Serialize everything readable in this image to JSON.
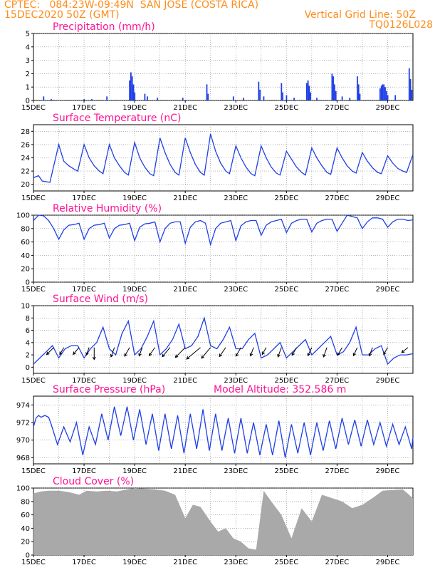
{
  "header": {
    "line1_left": "CPTEC:   084:23W-09:49N  SAN JOSE (COSTA RICA)",
    "line2_left": "15DEC2020 50Z (GMT)",
    "line2_right": "Vertical Grid Line: 50Z",
    "line3_right": "TQ0126L028"
  },
  "colors": {
    "header": "#ff8c1a",
    "title": "#ff1493",
    "series": "#1f3fe6",
    "cloud": "#a9a9a9"
  },
  "x_ticks": [
    "15DEC",
    "17DEC",
    "19DEC",
    "21DEC",
    "23DEC",
    "25DEC",
    "27DEC",
    "29DEC"
  ],
  "chart_data": [
    {
      "type": "bar",
      "title": "Precipitation (mm/h)",
      "ylim": [
        0,
        5
      ],
      "yticks": [
        "0",
        "1",
        "2",
        "3",
        "4",
        "5"
      ],
      "x_range_days": [
        15,
        30
      ],
      "events": [
        {
          "x": 15.4,
          "v": 0.3
        },
        {
          "x": 15.7,
          "v": 0.1
        },
        {
          "x": 17.0,
          "v": 0.1
        },
        {
          "x": 17.3,
          "v": 0.1
        },
        {
          "x": 17.9,
          "v": 0.3
        },
        {
          "x": 18.8,
          "v": 1.5
        },
        {
          "x": 18.85,
          "v": 2.1
        },
        {
          "x": 18.9,
          "v": 1.8
        },
        {
          "x": 18.95,
          "v": 1.2
        },
        {
          "x": 19.0,
          "v": 0.6
        },
        {
          "x": 19.4,
          "v": 0.5
        },
        {
          "x": 19.5,
          "v": 0.3
        },
        {
          "x": 19.9,
          "v": 0.2
        },
        {
          "x": 20.9,
          "v": 0.2
        },
        {
          "x": 21.85,
          "v": 1.2
        },
        {
          "x": 21.9,
          "v": 0.5
        },
        {
          "x": 22.9,
          "v": 0.3
        },
        {
          "x": 23.3,
          "v": 0.2
        },
        {
          "x": 23.9,
          "v": 1.4
        },
        {
          "x": 23.95,
          "v": 0.8
        },
        {
          "x": 24.1,
          "v": 0.3
        },
        {
          "x": 24.8,
          "v": 1.3
        },
        {
          "x": 24.85,
          "v": 0.6
        },
        {
          "x": 25.0,
          "v": 0.4
        },
        {
          "x": 25.3,
          "v": 0.2
        },
        {
          "x": 25.8,
          "v": 1.3
        },
        {
          "x": 25.85,
          "v": 1.5
        },
        {
          "x": 25.9,
          "v": 1.1
        },
        {
          "x": 25.95,
          "v": 0.6
        },
        {
          "x": 26.2,
          "v": 0.2
        },
        {
          "x": 26.8,
          "v": 2.0
        },
        {
          "x": 26.85,
          "v": 1.8
        },
        {
          "x": 26.9,
          "v": 1.2
        },
        {
          "x": 26.95,
          "v": 0.7
        },
        {
          "x": 27.2,
          "v": 0.3
        },
        {
          "x": 27.5,
          "v": 0.2
        },
        {
          "x": 27.8,
          "v": 1.8
        },
        {
          "x": 27.85,
          "v": 1.2
        },
        {
          "x": 27.9,
          "v": 0.5
        },
        {
          "x": 28.7,
          "v": 0.9
        },
        {
          "x": 28.75,
          "v": 1.1
        },
        {
          "x": 28.8,
          "v": 1.2
        },
        {
          "x": 28.85,
          "v": 1.2
        },
        {
          "x": 28.9,
          "v": 1.0
        },
        {
          "x": 28.95,
          "v": 0.7
        },
        {
          "x": 29.0,
          "v": 0.4
        },
        {
          "x": 29.3,
          "v": 0.4
        },
        {
          "x": 29.85,
          "v": 2.4
        },
        {
          "x": 29.9,
          "v": 1.6
        },
        {
          "x": 29.95,
          "v": 0.8
        }
      ]
    },
    {
      "type": "line",
      "title": "Surface Temperature (nC)",
      "ylim": [
        19,
        29
      ],
      "yticks": [
        "20",
        "22",
        "24",
        "26",
        "28"
      ],
      "x": [
        15.0,
        15.2,
        15.35,
        15.65,
        16.0,
        16.2,
        16.4,
        16.6,
        16.75,
        17.0,
        17.2,
        17.4,
        17.6,
        17.75,
        18.0,
        18.2,
        18.4,
        18.6,
        18.75,
        19.0,
        19.2,
        19.4,
        19.6,
        19.75,
        20.0,
        20.2,
        20.4,
        20.6,
        20.75,
        21.0,
        21.2,
        21.4,
        21.6,
        21.75,
        22.0,
        22.2,
        22.4,
        22.6,
        22.75,
        23.0,
        23.2,
        23.4,
        23.6,
        23.75,
        24.0,
        24.2,
        24.4,
        24.6,
        24.75,
        25.0,
        25.2,
        25.4,
        25.6,
        25.75,
        26.0,
        26.2,
        26.4,
        26.6,
        26.75,
        27.0,
        27.2,
        27.4,
        27.6,
        27.75,
        28.0,
        28.2,
        28.4,
        28.6,
        28.75,
        29.0,
        29.2,
        29.4,
        29.6,
        29.75,
        30.0
      ],
      "y": [
        21.0,
        21.3,
        20.5,
        20.3,
        26.0,
        23.5,
        22.8,
        22.3,
        22.0,
        26.0,
        24.0,
        22.8,
        22.0,
        21.6,
        26.0,
        24.0,
        22.8,
        21.8,
        21.4,
        26.3,
        24.0,
        22.6,
        21.6,
        21.3,
        27.0,
        24.8,
        23.0,
        21.8,
        21.4,
        27.0,
        24.8,
        23.0,
        21.8,
        21.4,
        27.6,
        25.0,
        23.2,
        22.0,
        21.6,
        25.8,
        24.0,
        22.6,
        21.6,
        21.3,
        25.8,
        24.0,
        22.6,
        21.7,
        21.4,
        25.0,
        23.8,
        22.6,
        21.8,
        21.4,
        25.5,
        24.0,
        22.8,
        21.8,
        21.5,
        25.5,
        24.0,
        22.8,
        22.0,
        21.7,
        24.8,
        23.5,
        22.5,
        21.8,
        21.6,
        24.3,
        23.2,
        22.4,
        22.0,
        21.8,
        24.5
      ]
    },
    {
      "type": "line",
      "title": "Relative Humidity (%)",
      "ylim": [
        0,
        100
      ],
      "yticks": [
        "0",
        "20",
        "40",
        "60",
        "80",
        "100"
      ],
      "x": [
        15.0,
        15.2,
        15.4,
        15.6,
        15.8,
        16.0,
        16.2,
        16.4,
        16.6,
        16.8,
        17.0,
        17.2,
        17.4,
        17.6,
        17.8,
        18.0,
        18.2,
        18.4,
        18.6,
        18.8,
        19.0,
        19.2,
        19.4,
        19.6,
        19.8,
        20.0,
        20.2,
        20.4,
        20.6,
        20.8,
        21.0,
        21.2,
        21.4,
        21.6,
        21.8,
        22.0,
        22.2,
        22.4,
        22.6,
        22.8,
        23.0,
        23.2,
        23.4,
        23.6,
        23.8,
        24.0,
        24.2,
        24.4,
        24.6,
        24.8,
        25.0,
        25.2,
        25.4,
        25.6,
        25.8,
        26.0,
        26.2,
        26.4,
        26.6,
        26.8,
        27.0,
        27.2,
        27.4,
        27.6,
        27.8,
        28.0,
        28.2,
        28.4,
        28.6,
        28.8,
        29.0,
        29.2,
        29.4,
        29.6,
        29.8,
        30.0
      ],
      "y": [
        92,
        100,
        99,
        92,
        80,
        64,
        78,
        85,
        86,
        88,
        64,
        80,
        85,
        86,
        88,
        66,
        80,
        85,
        86,
        88,
        62,
        82,
        87,
        88,
        90,
        60,
        80,
        88,
        90,
        90,
        58,
        82,
        90,
        92,
        88,
        56,
        80,
        88,
        90,
        92,
        62,
        84,
        90,
        92,
        92,
        70,
        85,
        90,
        92,
        94,
        74,
        88,
        92,
        94,
        94,
        75,
        88,
        92,
        94,
        94,
        76,
        88,
        100,
        98,
        96,
        80,
        90,
        96,
        96,
        94,
        82,
        90,
        94,
        94,
        92,
        93
      ]
    },
    {
      "type": "line",
      "title": "Surface Wind (m/s)",
      "ylim": [
        -1,
        10
      ],
      "yticks": [
        "0",
        "2",
        "4",
        "6",
        "8",
        "10"
      ],
      "x": [
        15.0,
        15.25,
        15.5,
        15.75,
        16.0,
        16.25,
        16.5,
        16.75,
        17.0,
        17.25,
        17.5,
        17.75,
        18.0,
        18.25,
        18.5,
        18.75,
        19.0,
        19.25,
        19.5,
        19.75,
        20.0,
        20.25,
        20.5,
        20.75,
        21.0,
        21.25,
        21.5,
        21.75,
        22.0,
        22.25,
        22.5,
        22.75,
        23.0,
        23.25,
        23.5,
        23.75,
        24.0,
        24.25,
        24.5,
        24.75,
        25.0,
        25.25,
        25.5,
        25.75,
        26.0,
        26.25,
        26.5,
        26.75,
        27.0,
        27.25,
        27.5,
        27.75,
        28.0,
        28.25,
        28.5,
        28.75,
        29.0,
        29.25,
        29.5,
        29.75,
        30.0
      ],
      "y": [
        0.5,
        1.5,
        2.5,
        3.5,
        1.5,
        3.0,
        3.5,
        3.5,
        1.5,
        3.0,
        4.0,
        6.5,
        3.0,
        2.0,
        5.5,
        7.5,
        2.0,
        3.0,
        5.0,
        7.5,
        2.0,
        3.0,
        4.5,
        7.0,
        3.0,
        3.5,
        5.0,
        8.0,
        3.5,
        3.0,
        4.5,
        6.5,
        3.0,
        3.0,
        4.5,
        5.5,
        1.5,
        2.0,
        3.0,
        4.0,
        1.5,
        2.5,
        3.5,
        4.5,
        2.0,
        3.0,
        4.0,
        5.0,
        2.0,
        2.5,
        4.0,
        6.5,
        2.0,
        2.0,
        3.0,
        3.5,
        0.5,
        1.5,
        2.0,
        2.0,
        2.2
      ],
      "arrows": [
        {
          "x": 15.8,
          "dir": 225,
          "len": 1.0
        },
        {
          "x": 16.2,
          "dir": 210,
          "len": 0.8
        },
        {
          "x": 16.8,
          "dir": 220,
          "len": 0.9
        },
        {
          "x": 17.2,
          "dir": 200,
          "len": 0.8
        },
        {
          "x": 17.4,
          "dir": 180,
          "len": 1.2
        },
        {
          "x": 18.2,
          "dir": 200,
          "len": 1.0
        },
        {
          "x": 18.8,
          "dir": 210,
          "len": 1.0
        },
        {
          "x": 19.3,
          "dir": 200,
          "len": 0.9
        },
        {
          "x": 19.8,
          "dir": 215,
          "len": 1.0
        },
        {
          "x": 20.4,
          "dir": 220,
          "len": 1.2
        },
        {
          "x": 21.0,
          "dir": 225,
          "len": 1.4
        },
        {
          "x": 21.6,
          "dir": 230,
          "len": 1.8
        },
        {
          "x": 22.0,
          "dir": 220,
          "len": 1.4
        },
        {
          "x": 22.6,
          "dir": 215,
          "len": 1.1
        },
        {
          "x": 23.2,
          "dir": 210,
          "len": 1.0
        },
        {
          "x": 23.7,
          "dir": 200,
          "len": 0.9
        },
        {
          "x": 24.2,
          "dir": 210,
          "len": 0.8
        },
        {
          "x": 24.8,
          "dir": 200,
          "len": 1.0
        },
        {
          "x": 25.4,
          "dir": 210,
          "len": 0.9
        },
        {
          "x": 26.0,
          "dir": 205,
          "len": 0.9
        },
        {
          "x": 26.6,
          "dir": 200,
          "len": 1.0
        },
        {
          "x": 27.2,
          "dir": 210,
          "len": 0.9
        },
        {
          "x": 27.8,
          "dir": 205,
          "len": 0.9
        },
        {
          "x": 28.4,
          "dir": 200,
          "len": 0.9
        },
        {
          "x": 29.0,
          "dir": 210,
          "len": 0.8
        },
        {
          "x": 29.8,
          "dir": 230,
          "len": 0.8
        }
      ]
    },
    {
      "type": "line",
      "title": "Surface Pressure (hPa)",
      "annotation": "Model Altitude: 352.586 m",
      "ylim": [
        967.3,
        975
      ],
      "yticks": [
        "968",
        "970",
        "972",
        "974"
      ],
      "x": [
        15.0,
        15.1,
        15.2,
        15.3,
        15.45,
        15.6,
        15.7,
        15.95,
        16.2,
        16.45,
        16.7,
        16.95,
        17.2,
        17.45,
        17.7,
        17.95,
        18.2,
        18.45,
        18.7,
        18.95,
        19.2,
        19.45,
        19.7,
        19.95,
        20.2,
        20.45,
        20.7,
        20.95,
        21.2,
        21.45,
        21.7,
        21.95,
        22.2,
        22.45,
        22.7,
        22.95,
        23.2,
        23.45,
        23.7,
        23.95,
        24.2,
        24.45,
        24.7,
        24.95,
        25.2,
        25.45,
        25.7,
        25.95,
        26.2,
        26.45,
        26.7,
        26.95,
        27.2,
        27.45,
        27.7,
        27.95,
        28.2,
        28.45,
        28.7,
        28.95,
        29.2,
        29.45,
        29.7,
        29.95,
        30.0
      ],
      "y": [
        971.5,
        972.5,
        972.8,
        972.6,
        972.8,
        972.6,
        971.8,
        969.5,
        971.5,
        969.8,
        972.0,
        968.3,
        971.5,
        969.5,
        973.0,
        970.0,
        973.8,
        970.5,
        973.8,
        970.0,
        973.5,
        969.5,
        973.0,
        968.8,
        973.0,
        969.0,
        972.8,
        968.5,
        973.0,
        969.0,
        973.5,
        968.8,
        973.0,
        968.8,
        972.5,
        968.5,
        972.5,
        968.5,
        972.0,
        968.3,
        971.8,
        968.3,
        972.2,
        968.0,
        971.8,
        968.5,
        972.0,
        968.3,
        972.0,
        968.8,
        972.2,
        969.0,
        972.5,
        969.5,
        972.3,
        969.3,
        972.3,
        969.5,
        972.0,
        969.3,
        971.8,
        969.5,
        971.5,
        969.0,
        970.3
      ]
    },
    {
      "type": "area",
      "title": "Cloud Cover (%)",
      "ylim": [
        0,
        100
      ],
      "yticks": [
        "0",
        "20",
        "40",
        "60",
        "80",
        "100"
      ],
      "x": [
        15.0,
        15.3,
        15.6,
        16.0,
        16.4,
        16.8,
        17.1,
        17.5,
        17.9,
        18.3,
        18.7,
        19.0,
        19.4,
        19.8,
        20.2,
        20.6,
        21.0,
        21.3,
        21.6,
        22.0,
        22.3,
        22.6,
        22.9,
        23.2,
        23.5,
        23.8,
        24.1,
        24.4,
        24.8,
        25.2,
        25.6,
        26.0,
        26.4,
        26.8,
        27.2,
        27.6,
        28.0,
        28.4,
        28.8,
        29.2,
        29.6,
        30.0
      ],
      "y": [
        92,
        95,
        96,
        96,
        94,
        90,
        96,
        95,
        96,
        95,
        98,
        100,
        99,
        98,
        96,
        90,
        55,
        75,
        72,
        50,
        35,
        40,
        25,
        20,
        10,
        8,
        96,
        80,
        60,
        25,
        70,
        50,
        90,
        85,
        80,
        70,
        75,
        85,
        96,
        97,
        98,
        85
      ]
    }
  ]
}
